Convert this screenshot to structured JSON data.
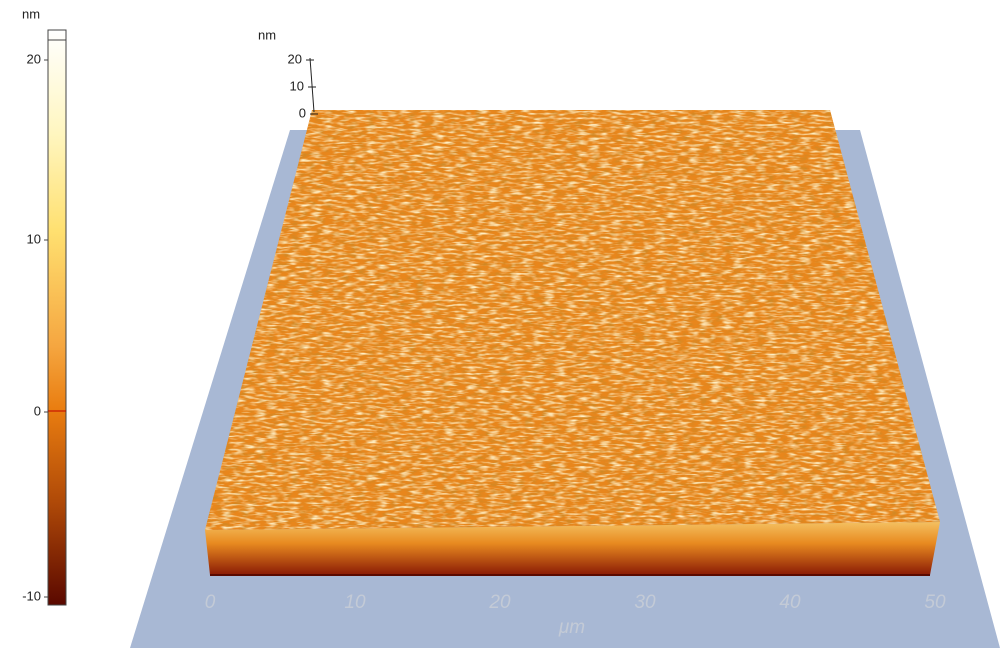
{
  "colorbar": {
    "unit": "nm",
    "ticks": [
      "20",
      "10",
      "0",
      "-10"
    ]
  },
  "z_axis": {
    "unit": "nm",
    "ticks": [
      "20",
      "10",
      "0"
    ]
  },
  "x_axis": {
    "ticks": [
      "0",
      "10",
      "20",
      "30",
      "40",
      "50"
    ],
    "unit": "μm"
  }
}
